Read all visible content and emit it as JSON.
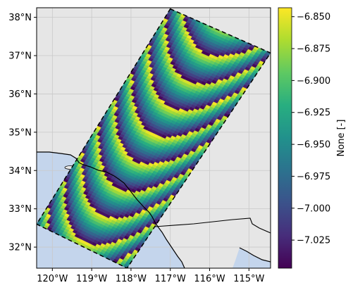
{
  "chart_data": {
    "type": "heatmap",
    "title": "",
    "projection": "PlateCarree",
    "x_ticks": [
      {
        "value": -120,
        "label": "120°W"
      },
      {
        "value": -119,
        "label": "119°W"
      },
      {
        "value": -118,
        "label": "118°W"
      },
      {
        "value": -117,
        "label": "117°W"
      },
      {
        "value": -116,
        "label": "116°W"
      },
      {
        "value": -115,
        "label": "115°W"
      }
    ],
    "y_ticks": [
      {
        "value": 32,
        "label": "32°N"
      },
      {
        "value": 33,
        "label": "33°N"
      },
      {
        "value": 34,
        "label": "34°N"
      },
      {
        "value": 35,
        "label": "35°N"
      },
      {
        "value": 36,
        "label": "36°N"
      },
      {
        "value": 37,
        "label": "37°N"
      },
      {
        "value": 38,
        "label": "38°N"
      }
    ],
    "xlim": [
      -120.4,
      -114.45
    ],
    "ylim": [
      31.45,
      38.25
    ],
    "grid": true,
    "swath_corners_lonlat": [
      [
        -117.0,
        38.22
      ],
      [
        -114.45,
        37.07
      ],
      [
        -118.1,
        31.45
      ],
      [
        -120.4,
        32.6
      ]
    ],
    "value_pattern": "scalloped arcs repeating along swath, period ~0.62 deg along-track",
    "colormap": "viridis",
    "colorbar": {
      "label": "None [-]",
      "vmin": -7.047,
      "vmax": -6.843,
      "ticks": [
        {
          "value": -6.85,
          "label": "−6.850"
        },
        {
          "value": -6.875,
          "label": "−6.875"
        },
        {
          "value": -6.9,
          "label": "−6.900"
        },
        {
          "value": -6.925,
          "label": "−6.925"
        },
        {
          "value": -6.95,
          "label": "−6.950"
        },
        {
          "value": -6.975,
          "label": "−6.975"
        },
        {
          "value": -7.0,
          "label": "−7.000"
        },
        {
          "value": -7.025,
          "label": "−7.025"
        }
      ]
    },
    "colors": {
      "land": "#e6e6e6",
      "ocean": "#c4d5ec",
      "grid": "#c9c9c9",
      "coast": "#000000"
    }
  }
}
